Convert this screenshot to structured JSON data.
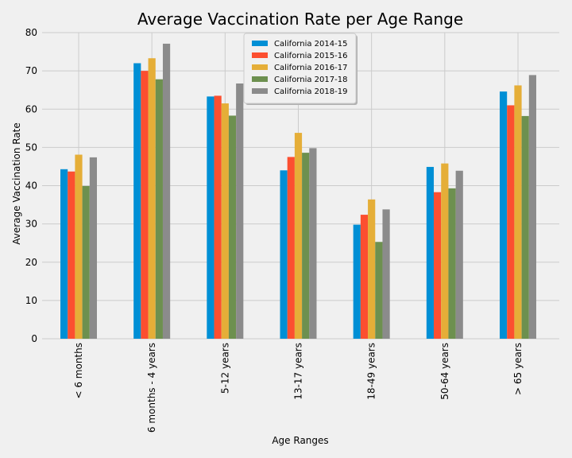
{
  "chart_data": {
    "type": "bar",
    "title": "Average Vaccination Rate per Age Range",
    "xlabel": "Age Ranges",
    "ylabel": "Average Vaccination Rate",
    "ylim": [
      0,
      80
    ],
    "yticks": [
      0,
      10,
      20,
      30,
      40,
      50,
      60,
      70,
      80
    ],
    "grid": true,
    "legend_position": "top-center",
    "categories": [
      "< 6 months",
      "6 months - 4 years",
      "5-12 years",
      "13-17 years",
      "18-49 years",
      "50-64 years",
      "> 65 years"
    ],
    "series": [
      {
        "name": "California 2014-15",
        "color": "#008fd5",
        "values": [
          44.3,
          72.0,
          63.3,
          44.0,
          29.8,
          44.9,
          64.6
        ]
      },
      {
        "name": "California 2015-16",
        "color": "#fc4f30",
        "values": [
          43.7,
          70.0,
          63.5,
          47.5,
          32.4,
          38.3,
          61.0
        ]
      },
      {
        "name": "California 2016-17",
        "color": "#e5ae38",
        "values": [
          48.1,
          73.3,
          61.5,
          53.8,
          36.4,
          45.8,
          66.2
        ]
      },
      {
        "name": "California 2017-18",
        "color": "#6d904f",
        "values": [
          39.9,
          67.8,
          58.3,
          48.6,
          25.3,
          39.3,
          58.2
        ]
      },
      {
        "name": "California 2018-19",
        "color": "#8b8b8b",
        "values": [
          47.4,
          77.1,
          66.7,
          49.8,
          33.8,
          43.9,
          68.9
        ]
      }
    ]
  }
}
